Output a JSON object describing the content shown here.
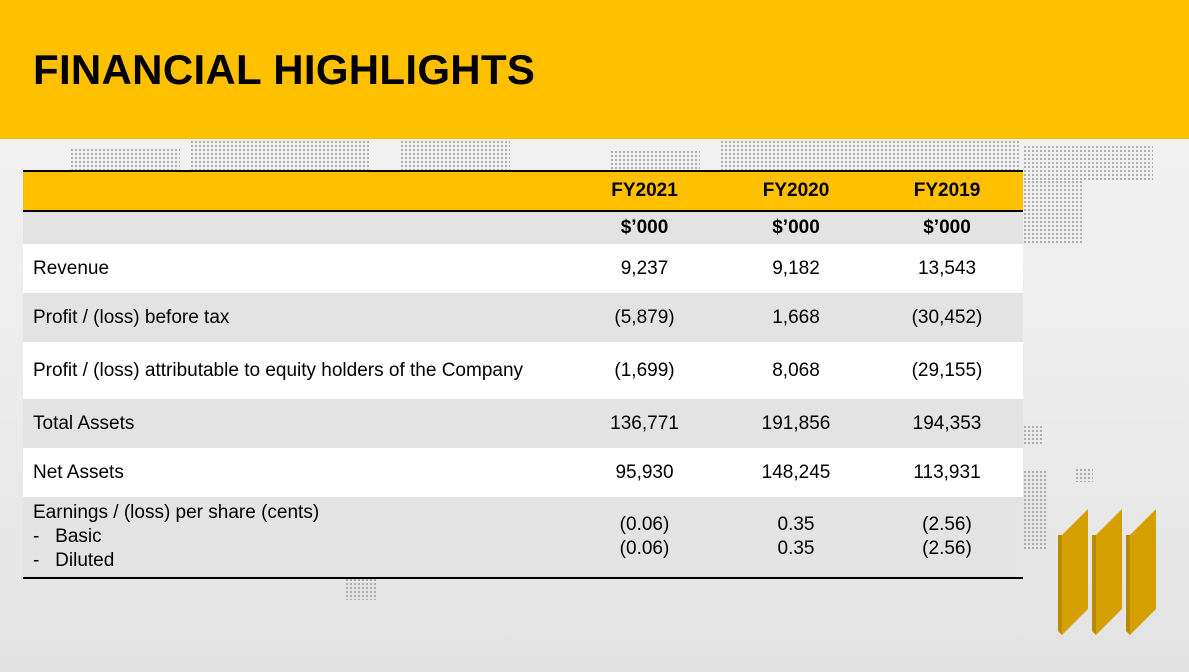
{
  "title": "FINANCIAL HIGHLIGHTS",
  "table": {
    "columns": [
      "",
      "FY2021",
      "FY2020",
      "FY2019"
    ],
    "units": [
      "",
      "$’000",
      "$’000",
      "$’000"
    ],
    "rows": [
      {
        "label": "Revenue",
        "values": [
          "9,237",
          "9,182",
          "13,543"
        ]
      },
      {
        "label": "Profit / (loss) before tax",
        "values": [
          "(5,879)",
          "1,668",
          "(30,452)"
        ]
      },
      {
        "label": "Profit / (loss) attributable to equity holders of the Company",
        "values": [
          "(1,699)",
          "8,068",
          "(29,155)"
        ]
      },
      {
        "label": "Total Assets",
        "values": [
          "136,771",
          "191,856",
          "194,353"
        ]
      },
      {
        "label": "Net Assets",
        "values": [
          "95,930",
          "148,245",
          "113,931"
        ]
      }
    ],
    "eps": {
      "label": "Earnings / (loss) per share (cents)",
      "basic_label": "-   Basic",
      "diluted_label": "-   Diluted",
      "basic": [
        "(0.06)",
        "0.35",
        "(2.56)"
      ],
      "diluted": [
        "(0.06)",
        "0.35",
        "(2.56)"
      ]
    }
  },
  "colors": {
    "accent": "#ffc000",
    "logo": "#d4a000",
    "row_grey": "#e3e3e3"
  },
  "icons": [
    "world-dot-map",
    "company-logo"
  ]
}
